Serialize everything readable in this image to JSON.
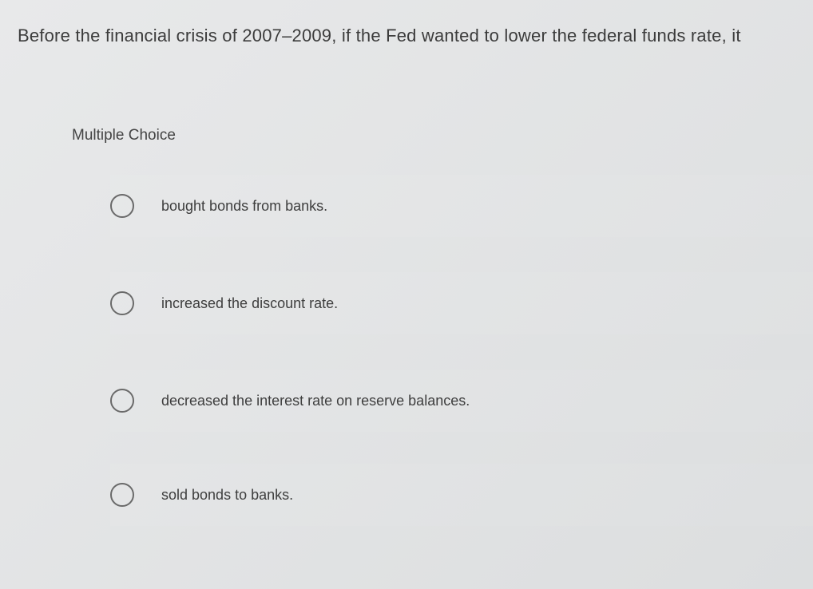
{
  "question": {
    "text": "Before the financial crisis of 2007–2009, if the Fed wanted to lower the federal funds rate, it"
  },
  "section": {
    "heading": "Multiple Choice"
  },
  "options": [
    {
      "label": "bought bonds from banks."
    },
    {
      "label": "increased the discount rate."
    },
    {
      "label": "decreased the interest rate on reserve balances."
    },
    {
      "label": "sold bonds to banks."
    }
  ],
  "style": {
    "background_gradient_start": "#e8e9ea",
    "background_gradient_end": "#dcdedf",
    "text_color": "#3a3a3a",
    "radio_border_color": "#6a6a6a",
    "question_fontsize": 22,
    "heading_fontsize": 19,
    "option_fontsize": 18
  }
}
